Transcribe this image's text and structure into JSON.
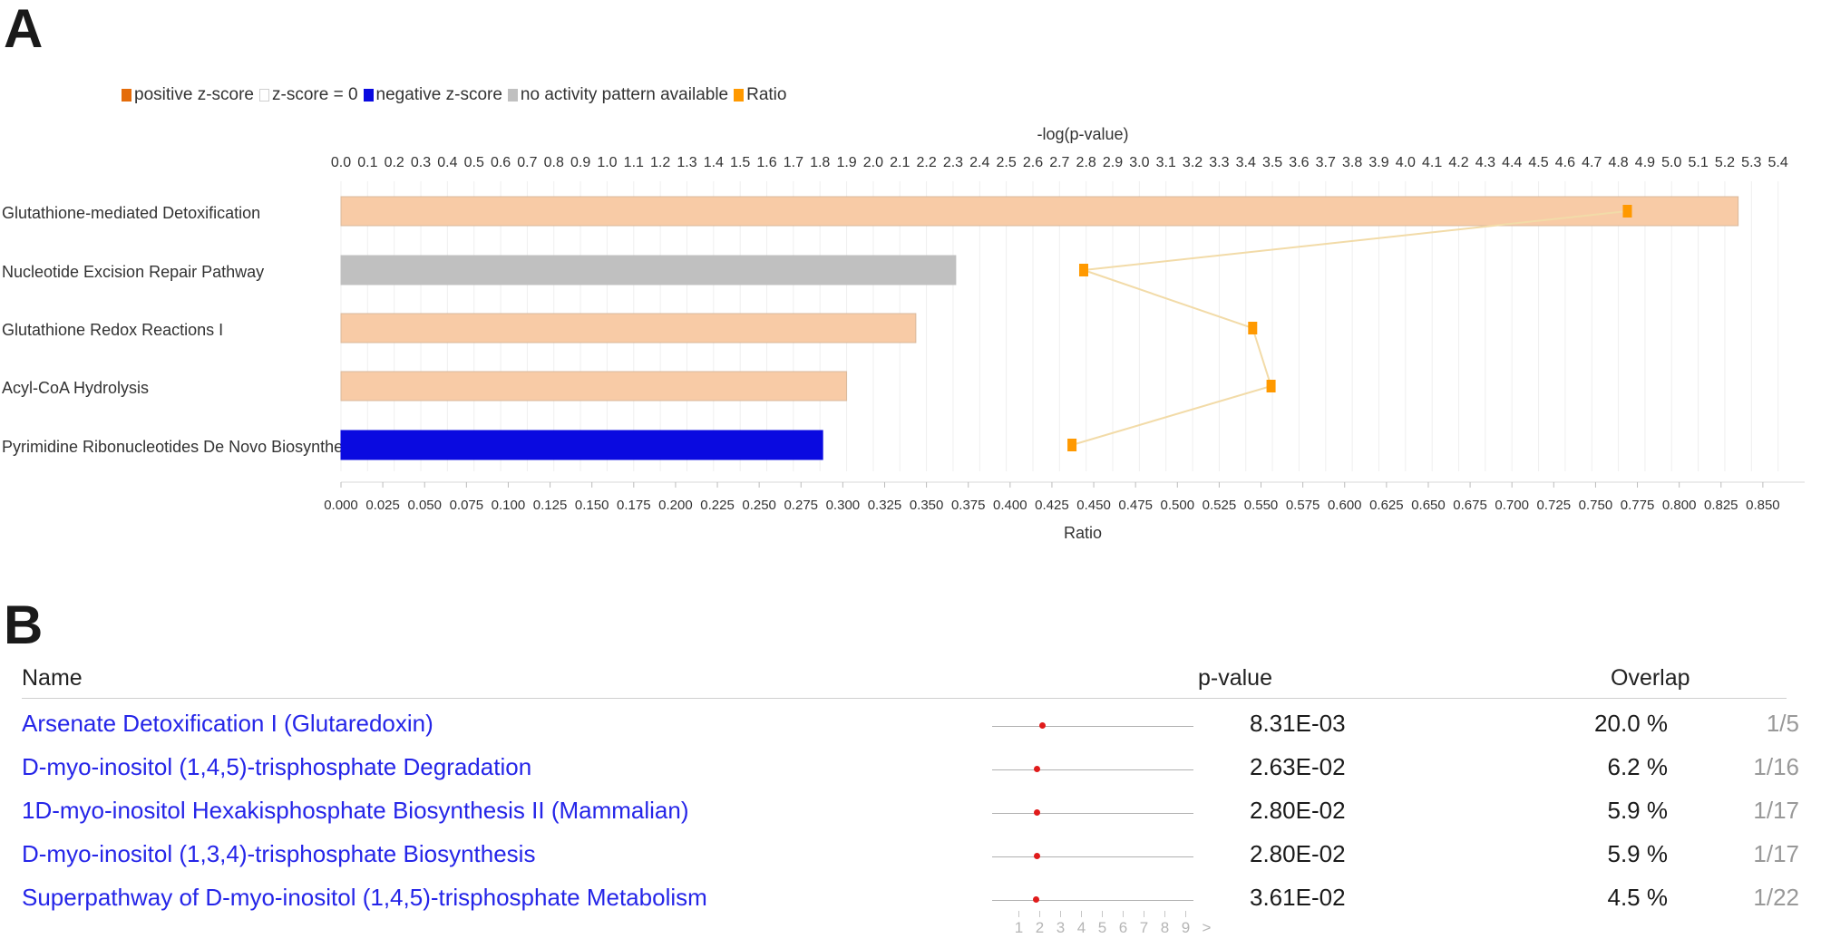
{
  "panels": {
    "a": "A",
    "b": "B"
  },
  "legend": [
    {
      "label": "positive z-score",
      "color": "#e46c0a",
      "border": "#e46c0a"
    },
    {
      "label": "z-score = 0",
      "color": "#ffffff",
      "border": "#cfcfcf"
    },
    {
      "label": "negative z-score",
      "color": "#0a0ae0",
      "border": "#0a0ae0"
    },
    {
      "label": "no activity pattern available",
      "color": "#c0c0c0",
      "border": "#c0c0c0"
    },
    {
      "label": "Ratio",
      "color": "#ff9900",
      "border": "#ff9900"
    }
  ],
  "chart_data": {
    "type": "bar",
    "orientation": "horizontal",
    "top_axis_label": "-log(p-value)",
    "top_axis_range": [
      0,
      5.4
    ],
    "bottom_axis_label": "Ratio",
    "bottom_axis_range": [
      0,
      0.85
    ],
    "categories": [
      "Glutathione-mediated Detoxification",
      "Nucleotide Excision Repair Pathway",
      "Glutathione Redox Reactions I",
      "Acyl-CoA Hydrolysis",
      "Pyrimidine Ribonucleotides De Novo Biosynthesis"
    ],
    "series": [
      {
        "name": "-log(p-value)",
        "values": [
          5.25,
          2.31,
          2.16,
          1.9,
          1.81
        ]
      },
      {
        "name": "Ratio",
        "values": [
          0.769,
          0.444,
          0.545,
          0.556,
          0.437
        ]
      }
    ],
    "bar_status": [
      "positive z-score",
      "no activity pattern available",
      "positive z-score",
      "positive z-score",
      "negative z-score"
    ],
    "bar_colors": [
      "#f8cba6",
      "#c0c0c0",
      "#f8cba6",
      "#f8cba6",
      "#0a0ae0"
    ],
    "ratio_color": "#ff9900",
    "ratio_line_color": "#f2dba8",
    "grid": true
  },
  "table": {
    "headers": {
      "name": "Name",
      "pvalue": "p-value",
      "overlap": "Overlap"
    },
    "rows": [
      {
        "name": "Arsenate Detoxification I (Glutaredoxin)",
        "pvalue": "8.31E-03",
        "overlap_pct": "20.0 %",
        "overlap_frac": "1/5",
        "neglog_p": 2.08
      },
      {
        "name": "D-myo-inositol (1,4,5)-trisphosphate Degradation",
        "pvalue": "2.63E-02",
        "overlap_pct": "6.2 %",
        "overlap_frac": "1/16",
        "neglog_p": 1.58
      },
      {
        "name": "1D-myo-inositol Hexakisphosphate Biosynthesis II (Mammalian)",
        "pvalue": "2.80E-02",
        "overlap_pct": "5.9 %",
        "overlap_frac": "1/17",
        "neglog_p": 1.55
      },
      {
        "name": "D-myo-inositol (1,3,4)-trisphosphate Biosynthesis",
        "pvalue": "2.80E-02",
        "overlap_pct": "5.9 %",
        "overlap_frac": "1/17",
        "neglog_p": 1.55
      },
      {
        "name": "Superpathway of D-myo-inositol (1,4,5)-trisphosphate Metabolism",
        "pvalue": "3.61E-02",
        "overlap_pct": "4.5 %",
        "overlap_frac": "1/22",
        "neglog_p": 1.44
      }
    ],
    "pager": [
      "1",
      "2",
      "3",
      "4",
      "5",
      "6",
      "7",
      "8",
      "9",
      ">"
    ]
  }
}
